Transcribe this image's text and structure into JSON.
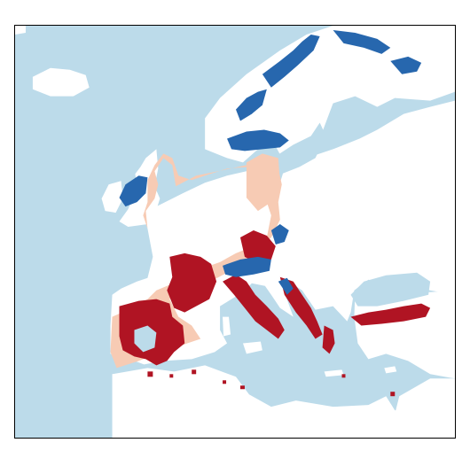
{
  "map": {
    "colors": {
      "ocean": "#bcdbea",
      "land": "#ffffff",
      "light_red": "#f7cbb4",
      "dark_red": "#b01423",
      "blue": "#2767ae"
    },
    "legend": [],
    "title": ""
  }
}
